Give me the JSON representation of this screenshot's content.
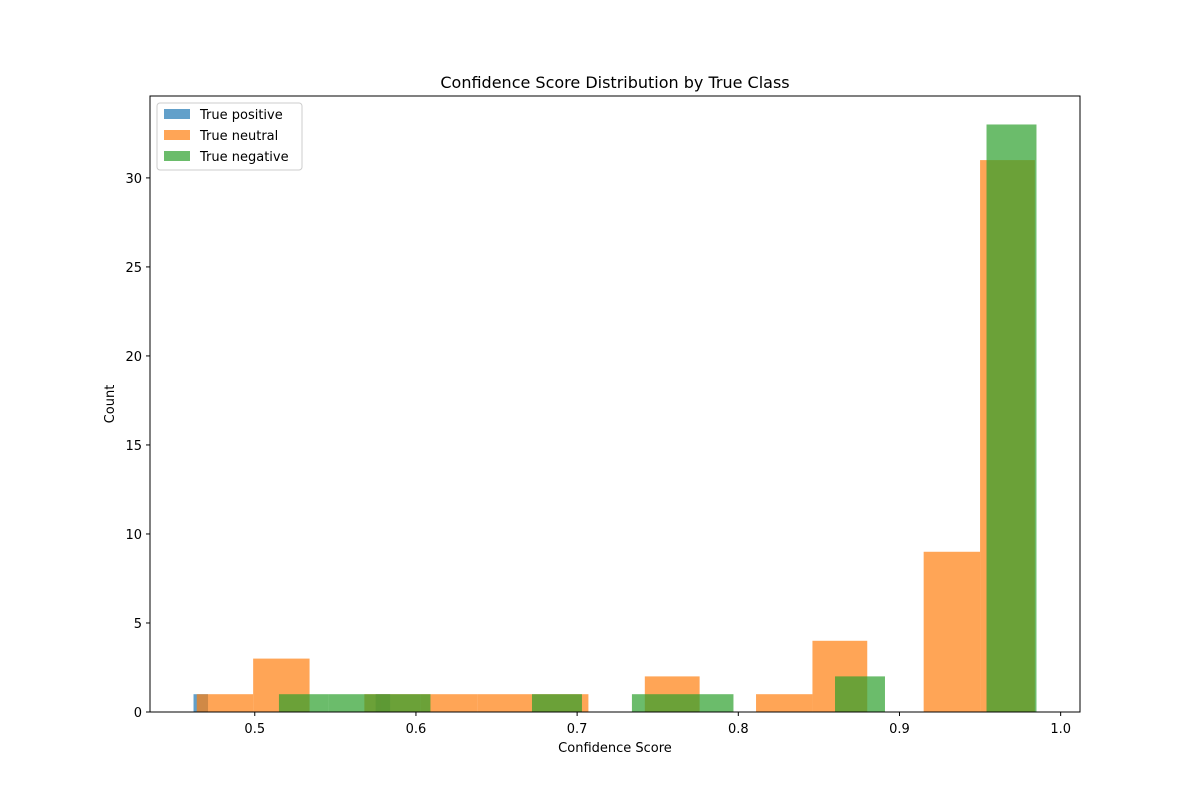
{
  "chart_data": {
    "type": "bar",
    "title": "Confidence Score Distribution by True Class",
    "xlabel": "Confidence Score",
    "ylabel": "Count",
    "xlim": [
      0.435,
      1.012
    ],
    "ylim": [
      0,
      34.6
    ],
    "x_ticks": [
      "0.5",
      "0.6",
      "0.7",
      "0.8",
      "0.9",
      "1.0"
    ],
    "y_ticks": [
      "0",
      "5",
      "10",
      "15",
      "20",
      "25",
      "30"
    ],
    "legend_position": "top-left",
    "grid": false,
    "series": [
      {
        "name": "True positive",
        "color": "#1f77b4",
        "bins": [
          {
            "x0": 0.462,
            "x1": 0.471,
            "count": 1
          },
          {
            "x0": 0.575,
            "x1": 0.584,
            "count": 1
          }
        ]
      },
      {
        "name": "True neutral",
        "color": "#ff7f0e",
        "bins": [
          {
            "x0": 0.464,
            "x1": 0.499,
            "count": 1
          },
          {
            "x0": 0.499,
            "x1": 0.534,
            "count": 3
          },
          {
            "x0": 0.534,
            "x1": 0.568,
            "count": 0
          },
          {
            "x0": 0.568,
            "x1": 0.603,
            "count": 1
          },
          {
            "x0": 0.603,
            "x1": 0.638,
            "count": 1
          },
          {
            "x0": 0.638,
            "x1": 0.673,
            "count": 1
          },
          {
            "x0": 0.673,
            "x1": 0.707,
            "count": 1
          },
          {
            "x0": 0.707,
            "x1": 0.742,
            "count": 0
          },
          {
            "x0": 0.742,
            "x1": 0.776,
            "count": 2
          },
          {
            "x0": 0.776,
            "x1": 0.811,
            "count": 0
          },
          {
            "x0": 0.811,
            "x1": 0.846,
            "count": 1
          },
          {
            "x0": 0.846,
            "x1": 0.88,
            "count": 4
          },
          {
            "x0": 0.88,
            "x1": 0.915,
            "count": 0
          },
          {
            "x0": 0.915,
            "x1": 0.95,
            "count": 9
          },
          {
            "x0": 0.95,
            "x1": 0.984,
            "count": 31
          }
        ]
      },
      {
        "name": "True negative",
        "color": "#2ca02c",
        "bins": [
          {
            "x0": 0.515,
            "x1": 0.546,
            "count": 1
          },
          {
            "x0": 0.546,
            "x1": 0.578,
            "count": 1
          },
          {
            "x0": 0.578,
            "x1": 0.609,
            "count": 1
          },
          {
            "x0": 0.609,
            "x1": 0.64,
            "count": 0
          },
          {
            "x0": 0.64,
            "x1": 0.672,
            "count": 0
          },
          {
            "x0": 0.672,
            "x1": 0.703,
            "count": 1
          },
          {
            "x0": 0.703,
            "x1": 0.734,
            "count": 0
          },
          {
            "x0": 0.734,
            "x1": 0.766,
            "count": 1
          },
          {
            "x0": 0.766,
            "x1": 0.797,
            "count": 1
          },
          {
            "x0": 0.797,
            "x1": 0.829,
            "count": 0
          },
          {
            "x0": 0.829,
            "x1": 0.86,
            "count": 0
          },
          {
            "x0": 0.86,
            "x1": 0.891,
            "count": 2
          },
          {
            "x0": 0.891,
            "x1": 0.923,
            "count": 0
          },
          {
            "x0": 0.923,
            "x1": 0.954,
            "count": 0
          },
          {
            "x0": 0.954,
            "x1": 0.985,
            "count": 33
          }
        ]
      }
    ]
  }
}
